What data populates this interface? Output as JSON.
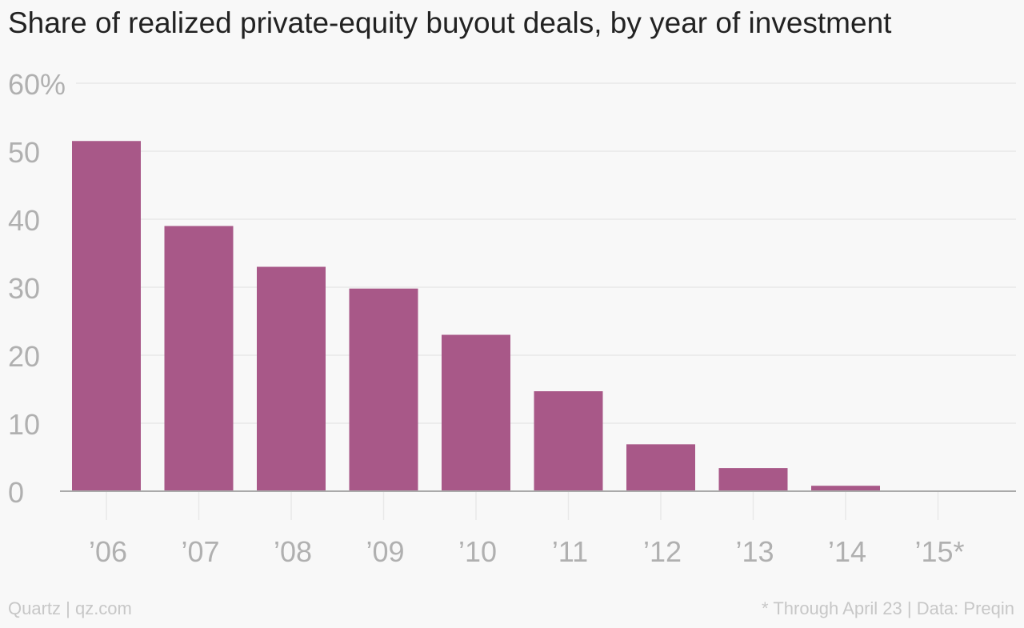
{
  "colors": {
    "background": "#f8f8f8",
    "bar": "#a85888",
    "gridline": "#e8e8e8",
    "axis": "#aaaaaa",
    "tick_label": "#b0b0b0",
    "title": "#222222",
    "footer": "#c7c7c7"
  },
  "footer": {
    "left": "Quartz | qz.com",
    "right": "* Through April 23 | Data: Preqin"
  },
  "chart_data": {
    "type": "bar",
    "title": "Share of realized private-equity buyout deals, by year of investment",
    "xlabel": "",
    "ylabel": "",
    "categories": [
      "’06",
      "’07",
      "’08",
      "’09",
      "’10",
      "’11",
      "’12",
      "’13",
      "’14",
      "’15*"
    ],
    "values": [
      51.5,
      39,
      33,
      29.8,
      23,
      14.7,
      6.9,
      3.4,
      0.8,
      0
    ],
    "ylim": [
      0,
      60
    ],
    "yticks": [
      0,
      10,
      20,
      30,
      40,
      50,
      60
    ],
    "ytick_labels": [
      "0",
      "10",
      "20",
      "30",
      "40",
      "50",
      "60%"
    ],
    "grid": true,
    "legend": "none"
  }
}
